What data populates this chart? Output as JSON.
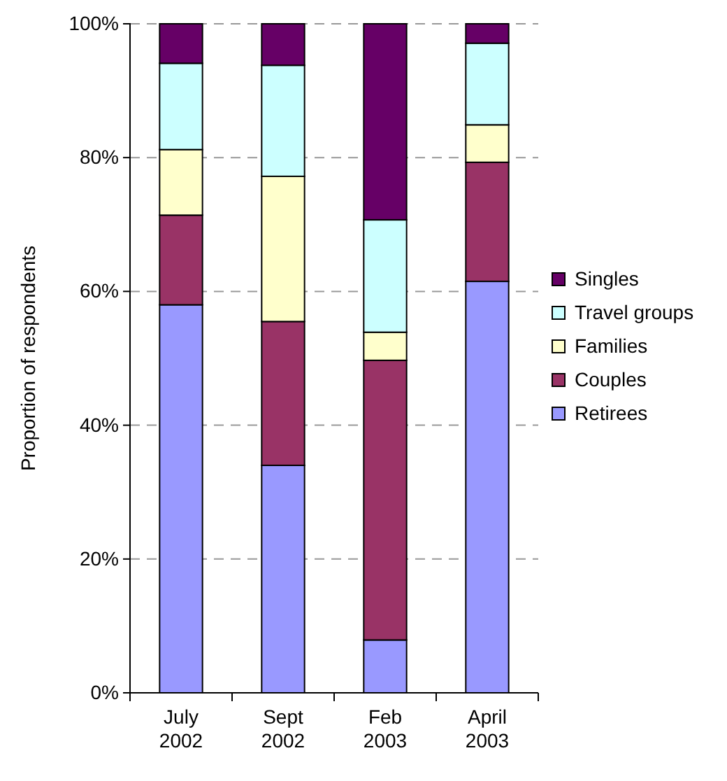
{
  "chart_data": {
    "type": "bar",
    "stacked": true,
    "ylabel": "Proportion of respondents",
    "categories": [
      "July\n2002",
      "Sept\n2002",
      "Feb\n2003",
      "April\n2003"
    ],
    "series": [
      {
        "name": "Retirees",
        "color": "#9999ff",
        "values": [
          58,
          34,
          7.9,
          61.5
        ]
      },
      {
        "name": "Couples",
        "color": "#993366",
        "values": [
          13.4,
          21.5,
          41.8,
          17.8
        ]
      },
      {
        "name": "Families",
        "color": "#ffffcc",
        "values": [
          9.8,
          21.7,
          4.2,
          5.6
        ]
      },
      {
        "name": "Travel groups",
        "color": "#ccffff",
        "values": [
          12.9,
          16.6,
          16.8,
          12.2
        ]
      },
      {
        "name": "Singles",
        "color": "#660066",
        "values": [
          5.9,
          6.2,
          29.3,
          2.9
        ]
      }
    ],
    "ylim": [
      0,
      100
    ],
    "yticks": [
      {
        "value": 0,
        "label": "0%"
      },
      {
        "value": 20,
        "label": "20%"
      },
      {
        "value": 40,
        "label": "40%"
      },
      {
        "value": 60,
        "label": "60%"
      },
      {
        "value": 80,
        "label": "80%"
      },
      {
        "value": 100,
        "label": "100%"
      }
    ],
    "grid": "y",
    "legend": "right"
  }
}
